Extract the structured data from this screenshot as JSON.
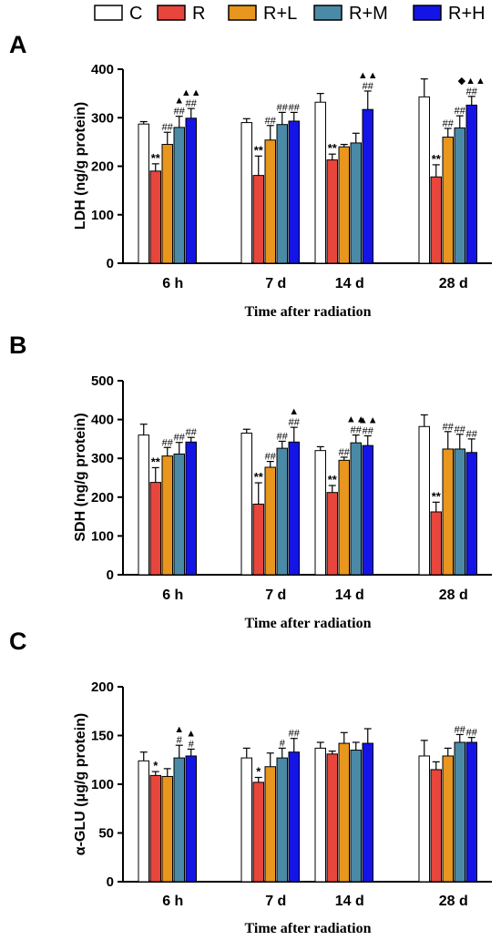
{
  "legend": [
    {
      "label": "C",
      "color": "#ffffff"
    },
    {
      "label": "R",
      "color": "#e8453c"
    },
    {
      "label": "R+L",
      "color": "#e8961e"
    },
    {
      "label": "R+M",
      "color": "#4a8aa6"
    },
    {
      "label": "R+H",
      "color": "#1414e6"
    }
  ],
  "chart_data": [
    {
      "panel": "A",
      "type": "bar",
      "ylabel": "LDH (ng/g protein)",
      "xlabel": "Time after radiation",
      "categories": [
        "6 h",
        "7 d",
        "14 d",
        "28 d"
      ],
      "ylim": [
        0,
        400
      ],
      "yticks": [
        0,
        100,
        200,
        300,
        400
      ],
      "series": [
        {
          "name": "C",
          "values": [
            287,
            290,
            332,
            343
          ],
          "err": [
            5,
            8,
            18,
            37
          ]
        },
        {
          "name": "R",
          "values": [
            190,
            181,
            213,
            178
          ],
          "err": [
            15,
            40,
            12,
            25
          ]
        },
        {
          "name": "R+L",
          "values": [
            245,
            254,
            240,
            260
          ],
          "err": [
            25,
            30,
            5,
            18
          ]
        },
        {
          "name": "R+M",
          "values": [
            280,
            286,
            248,
            279
          ],
          "err": [
            23,
            25,
            20,
            25
          ]
        },
        {
          "name": "R+H",
          "values": [
            299,
            293,
            317,
            326
          ],
          "err": [
            20,
            18,
            38,
            18
          ]
        }
      ],
      "annotations": [
        [
          "",
          "**",
          "",
          "",
          ""
        ],
        [
          "",
          "**",
          "##",
          "##",
          "##"
        ],
        [
          "",
          "**",
          "",
          "",
          ""
        ],
        [
          "",
          "**",
          "##",
          "##",
          "##"
        ]
      ],
      "annotations_row2": [
        [
          "",
          "",
          "##",
          "##",
          "##"
        ],
        [
          "",
          "",
          "",
          "",
          ""
        ],
        [
          "",
          "",
          "",
          "",
          "##"
        ],
        [
          "",
          "",
          "",
          "",
          ""
        ]
      ],
      "markers": [
        [
          "",
          "",
          "",
          "▲",
          "▲▲"
        ],
        [
          "",
          "",
          "",
          "",
          ""
        ],
        [
          "",
          "",
          "",
          "",
          "▲▲"
        ],
        [
          "",
          "",
          "",
          "",
          "◆▲▲"
        ]
      ]
    },
    {
      "panel": "B",
      "type": "bar",
      "ylabel": "SDH (ng/g protein)",
      "xlabel": "Time after radiation",
      "categories": [
        "6 h",
        "7 d",
        "14 d",
        "28 d"
      ],
      "ylim": [
        0,
        500
      ],
      "yticks": [
        0,
        100,
        200,
        300,
        400,
        500
      ],
      "series": [
        {
          "name": "C",
          "values": [
            360,
            365,
            320,
            382
          ],
          "err": [
            28,
            10,
            10,
            30
          ]
        },
        {
          "name": "R",
          "values": [
            238,
            182,
            212,
            162
          ],
          "err": [
            38,
            55,
            18,
            25
          ]
        },
        {
          "name": "R+L",
          "values": [
            306,
            277,
            295,
            324
          ],
          "err": [
            22,
            15,
            8,
            45
          ]
        },
        {
          "name": "R+M",
          "values": [
            311,
            326,
            340,
            324
          ],
          "err": [
            30,
            18,
            20,
            38
          ]
        },
        {
          "name": "R+H",
          "values": [
            342,
            342,
            333,
            315
          ],
          "err": [
            12,
            38,
            25,
            35
          ]
        }
      ],
      "annotations": [
        [
          "",
          "**",
          "##",
          "##",
          "##"
        ],
        [
          "",
          "**",
          "##",
          "##",
          "##"
        ],
        [
          "",
          "**",
          "##",
          "##",
          "##"
        ],
        [
          "",
          "**",
          "##",
          "##",
          "##"
        ]
      ],
      "annotations_row2": [
        [
          "",
          "",
          "",
          "",
          ""
        ],
        [
          "",
          "",
          "",
          "",
          ""
        ],
        [
          "",
          "",
          "",
          "",
          ""
        ],
        [
          "",
          "",
          "",
          "",
          ""
        ]
      ],
      "markers": [
        [
          "",
          "",
          "",
          "",
          ""
        ],
        [
          "",
          "",
          "",
          "",
          "▲"
        ],
        [
          "",
          "",
          "",
          "▲▲",
          "▲▲"
        ],
        [
          "",
          "",
          "",
          "",
          ""
        ]
      ]
    },
    {
      "panel": "C",
      "type": "bar",
      "ylabel": "α-GLU (μg/g protein)",
      "xlabel": "Time after radiation",
      "categories": [
        "6 h",
        "7 d",
        "14 d",
        "28 d"
      ],
      "ylim": [
        0,
        200
      ],
      "yticks": [
        0,
        50,
        100,
        150,
        200
      ],
      "series": [
        {
          "name": "C",
          "values": [
            124,
            127,
            137,
            129
          ],
          "err": [
            9,
            10,
            6,
            16
          ]
        },
        {
          "name": "R",
          "values": [
            109,
            102,
            131,
            115
          ],
          "err": [
            4,
            5,
            3,
            8
          ]
        },
        {
          "name": "R+L",
          "values": [
            108,
            118,
            142,
            129
          ],
          "err": [
            8,
            14,
            11,
            8
          ]
        },
        {
          "name": "R+M",
          "values": [
            127,
            127,
            135,
            143
          ],
          "err": [
            13,
            10,
            8,
            8
          ]
        },
        {
          "name": "R+H",
          "values": [
            129,
            133,
            142,
            143
          ],
          "err": [
            7,
            14,
            15,
            5
          ]
        }
      ],
      "annotations": [
        [
          "",
          "*",
          "",
          "#",
          "#"
        ],
        [
          "",
          "*",
          "",
          "#",
          "##"
        ],
        [
          "",
          "",
          "",
          "",
          ""
        ],
        [
          "",
          "",
          "",
          "##",
          "##"
        ]
      ],
      "annotations_row2": [
        [
          "",
          "",
          "",
          "",
          ""
        ],
        [
          "",
          "",
          "",
          "",
          ""
        ],
        [
          "",
          "",
          "",
          "",
          ""
        ],
        [
          "",
          "",
          "",
          "",
          ""
        ]
      ],
      "markers": [
        [
          "",
          "",
          "",
          "▲",
          "▲"
        ],
        [
          "",
          "",
          "",
          "",
          ""
        ],
        [
          "",
          "",
          "",
          "",
          ""
        ],
        [
          "",
          "",
          "",
          "",
          ""
        ]
      ]
    }
  ]
}
